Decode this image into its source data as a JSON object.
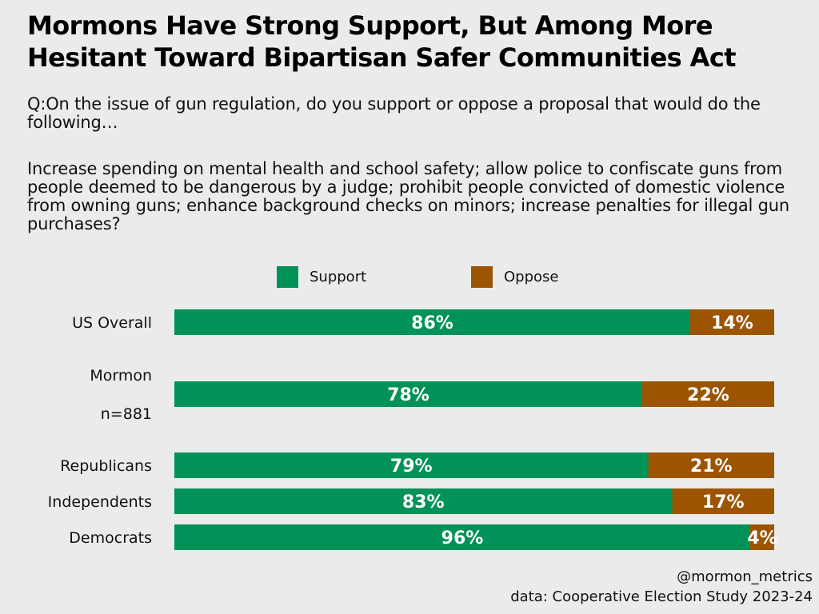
{
  "title_line1": "Mormons Have Strong Support, But Among More",
  "title_line2": "Hesitant Toward Bipartisan Safer Communities Act",
  "question": "Q:On the issue of gun regulation, do you support or oppose a proposal that would do the following…",
  "description": "Increase spending on mental health and school safety; allow police to confiscate guns from people deemed to be dangerous by a judge; prohibit people convicted of domestic violence from owning guns; enhance background checks on minors; increase penalties for illegal gun purchases?",
  "legend": {
    "support_label": "Support",
    "oppose_label": "Oppose"
  },
  "colors": {
    "support": "#009257",
    "oppose": "#9c5400"
  },
  "chart_data": {
    "type": "bar",
    "orientation": "horizontal",
    "stacked": true,
    "percent": true,
    "categories": [
      "US Overall",
      "Mormon n=881",
      "Republicans",
      "Independents",
      "Democrats"
    ],
    "category_lines": [
      [
        "US Overall"
      ],
      [
        "Mormon",
        "n=881"
      ],
      [
        "Republicans"
      ],
      [
        "Independents"
      ],
      [
        "Democrats"
      ]
    ],
    "series": [
      {
        "name": "Support",
        "values": [
          86,
          78,
          79,
          83,
          96
        ],
        "labels": [
          "86%",
          "78%",
          "79%",
          "83%",
          "96%"
        ]
      },
      {
        "name": "Oppose",
        "values": [
          14,
          22,
          21,
          17,
          4
        ],
        "labels": [
          "14%",
          "22%",
          "21%",
          "17%",
          "4%"
        ]
      }
    ],
    "xlim": [
      0,
      100
    ],
    "legend_position": "top-center"
  },
  "footer": {
    "handle": "@mormon_metrics",
    "source": "data: Cooperative Election Study 2023-24"
  }
}
